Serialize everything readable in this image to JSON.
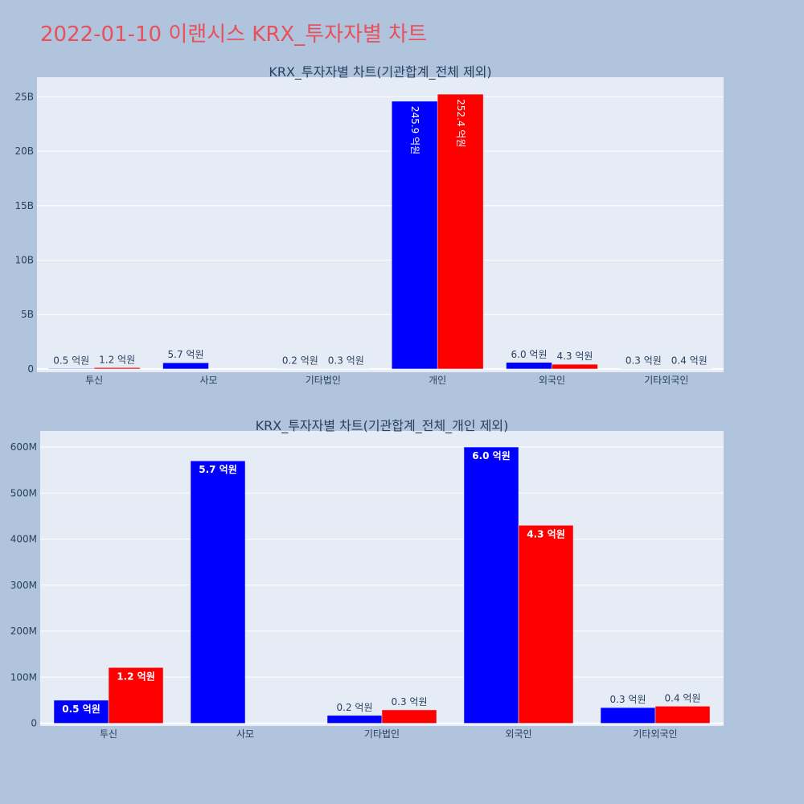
{
  "page_title": "2022-01-10 이랜시스 KRX_투자자별 차트",
  "colors": {
    "page_bg": "#b0c4de",
    "plot_bg": "#e5ecf6",
    "grid": "#ffffff",
    "title": "#e8505b",
    "text": "#2a3f5f",
    "buy": "#0000ff",
    "sell": "#ff0000"
  },
  "chart_data": [
    {
      "type": "bar",
      "title": "KRX_투자자별 차트(기관합계_전체 제외)",
      "categories": [
        "투신",
        "사모",
        "기타법인",
        "개인",
        "외국인",
        "기타외국인"
      ],
      "ylim": [
        -300000000,
        26800000000
      ],
      "yticks": [
        0,
        5000000000,
        10000000000,
        15000000000,
        20000000000,
        25000000000
      ],
      "ytick_labels": [
        "0",
        "5B",
        "10B",
        "15B",
        "20B",
        "25B"
      ],
      "grid": true,
      "series": [
        {
          "color": "#0000ff",
          "values": [
            50000000,
            570000000,
            17000000,
            24590000000,
            600000000,
            34000000
          ],
          "labels": [
            "0.5 억원",
            "5.7 억원",
            "0.2 억원",
            "245.9 억원",
            "6.0 억원",
            "0.3 억원"
          ]
        },
        {
          "color": "#ff0000",
          "values": [
            121000000,
            0,
            29000000,
            25240000000,
            430000000,
            37000000
          ],
          "labels": [
            "1.2 억원",
            "",
            "0.3 억원",
            "252.4 억원",
            "4.3 억원",
            "0.4 억원"
          ]
        }
      ]
    },
    {
      "type": "bar",
      "title": "KRX_투자자별 차트(기관합계_전체_개인 제외)",
      "categories": [
        "투신",
        "사모",
        "기타법인",
        "외국인",
        "기타외국인"
      ],
      "ylim": [
        -6000000,
        635000000
      ],
      "yticks": [
        0,
        100000000,
        200000000,
        300000000,
        400000000,
        500000000,
        600000000
      ],
      "ytick_labels": [
        "0",
        "100M",
        "200M",
        "300M",
        "400M",
        "500M",
        "600M"
      ],
      "grid": true,
      "series": [
        {
          "color": "#0000ff",
          "values": [
            50000000,
            570000000,
            17000000,
            600000000,
            34000000
          ],
          "labels": [
            "0.5 억원",
            "5.7 억원",
            "0.2 억원",
            "6.0 억원",
            "0.3 억원"
          ]
        },
        {
          "color": "#ff0000",
          "values": [
            121000000,
            0,
            29000000,
            430000000,
            37000000
          ],
          "labels": [
            "1.2 억원",
            "",
            "0.3 억원",
            "4.3 억원",
            "0.4 억원"
          ]
        }
      ]
    }
  ]
}
